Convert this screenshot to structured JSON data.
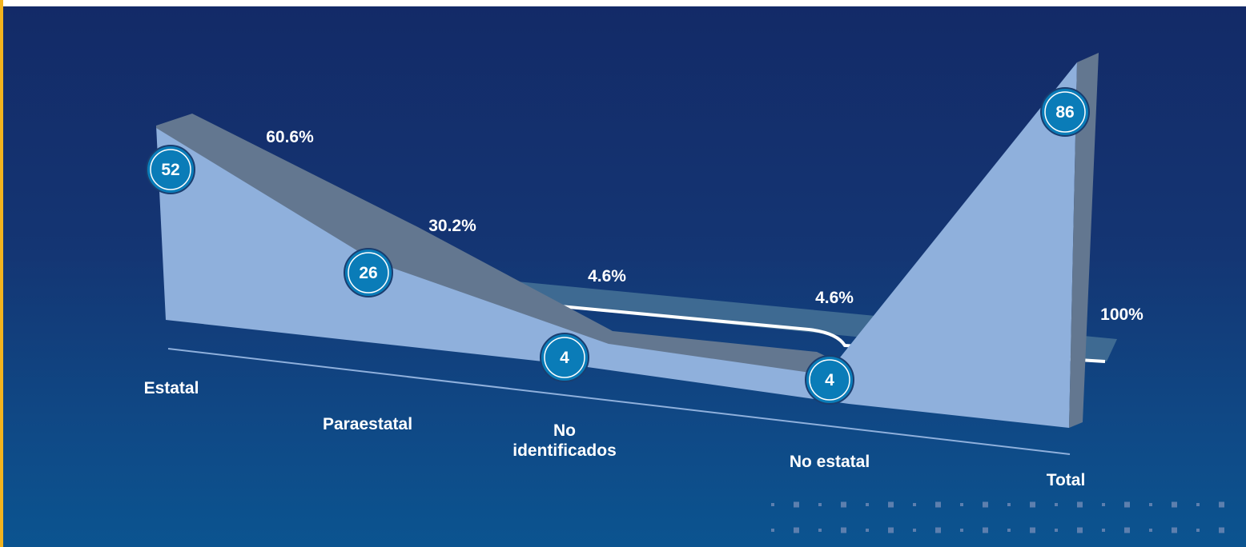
{
  "chart_data": {
    "type": "area",
    "categories": [
      "Estatal",
      "Paraestatal",
      "No identificados",
      "No estatal",
      "Total"
    ],
    "values": [
      52,
      26,
      4,
      4,
      86
    ],
    "percent_labels": [
      "60.6%",
      "30.2%",
      "4.6%",
      "4.6%",
      "100%"
    ],
    "category_labels": [
      [
        "Estatal"
      ],
      [
        "Paraestatal"
      ],
      [
        "No",
        "identificados"
      ],
      [
        "No estatal"
      ],
      [
        "Total"
      ]
    ],
    "title": "",
    "xlabel": "",
    "ylabel": "",
    "grid": false,
    "colors": {
      "background_top": "#132a67",
      "background_bottom": "#0b5490",
      "area_fill": "#8fb0dc",
      "ribbon": "#637790",
      "back_ribbon": "#3e6a92",
      "bubble": "#0a7cb8",
      "accent": "#f2b31e",
      "text": "#ffffff"
    }
  }
}
